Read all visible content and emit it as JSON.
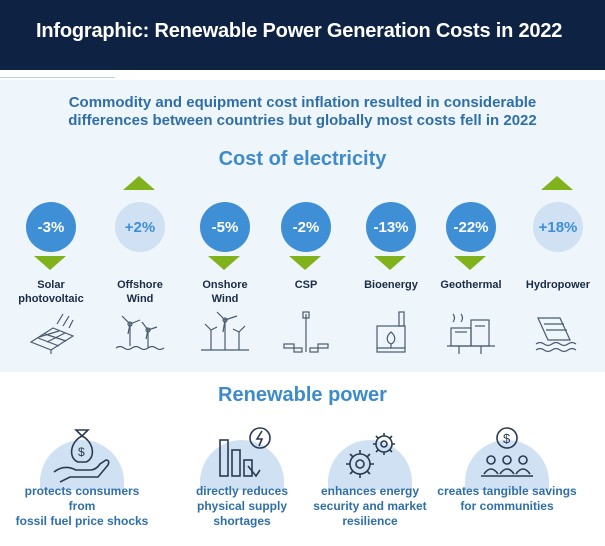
{
  "header": {
    "title": "Infographic: Renewable Power Generation Costs in 2022"
  },
  "subtitle": {
    "line1": "Commodity and equipment cost inflation resulted in considerable",
    "line2": "differences between countries but globally most costs fell in 2022"
  },
  "cost_section": {
    "title": "Cost of electricity"
  },
  "technologies": [
    {
      "change": "-3%",
      "direction": "down",
      "label_line1": "Solar",
      "label_line2": "photovoltaic",
      "icon": "solar-panel-icon"
    },
    {
      "change": "+2%",
      "direction": "up",
      "label_line1": "Offshore",
      "label_line2": "Wind",
      "icon": "offshore-wind-icon"
    },
    {
      "change": "-5%",
      "direction": "down",
      "label_line1": "Onshore",
      "label_line2": "Wind",
      "icon": "onshore-wind-icon"
    },
    {
      "change": "-2%",
      "direction": "down",
      "label_line1": "CSP",
      "label_line2": "",
      "icon": "csp-tower-icon"
    },
    {
      "change": "-13%",
      "direction": "down",
      "label_line1": "Bioenergy",
      "label_line2": "",
      "icon": "bioenergy-plant-icon"
    },
    {
      "change": "-22%",
      "direction": "down",
      "label_line1": "Geothermal",
      "label_line2": "",
      "icon": "geothermal-plant-icon"
    },
    {
      "change": "+18%",
      "direction": "up",
      "label_line1": "Hydropower",
      "label_line2": "",
      "icon": "hydropower-dam-icon"
    }
  ],
  "renewable_section": {
    "title": "Renewable power"
  },
  "benefits": [
    {
      "line1": "protects consumers from",
      "line2": "fossil fuel price shocks",
      "line3": "",
      "icon": "money-bag-hand-icon"
    },
    {
      "line1": "directly reduces",
      "line2": "physical supply",
      "line3": "shortages",
      "icon": "declining-bars-bolt-icon"
    },
    {
      "line1": "enhances energy",
      "line2": "security and market",
      "line3": "resilience",
      "icon": "gears-icon"
    },
    {
      "line1": "creates tangible savings",
      "line2": "for communities",
      "line3": "",
      "icon": "community-savings-icon"
    }
  ],
  "colors": {
    "header_bg": "#0e2244",
    "accent_blue": "#3e8fd6",
    "light_blue": "#cfe1f2",
    "arrow_green": "#7fb21b",
    "panel_bg": "#eef5fb"
  }
}
